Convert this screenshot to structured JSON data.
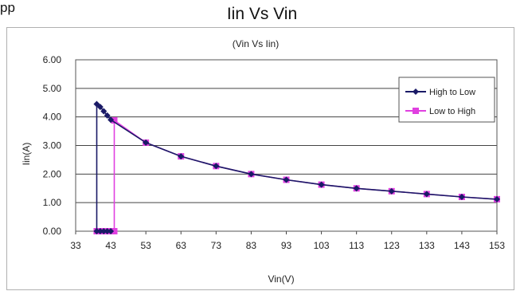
{
  "page": {
    "caption": "pp",
    "title": "Iin Vs Vin"
  },
  "chart_data": {
    "type": "line",
    "title": "(Vin Vs Iin)",
    "xlabel": "Vin(V)",
    "ylabel": "Iin(A)",
    "xlim": [
      33,
      153
    ],
    "ylim": [
      0,
      6
    ],
    "x_ticks": [
      "33",
      "43",
      "53",
      "63",
      "73",
      "83",
      "93",
      "103",
      "113",
      "123",
      "133",
      "143",
      "153"
    ],
    "y_ticks": [
      "0.00",
      "1.00",
      "2.00",
      "3.00",
      "4.00",
      "5.00",
      "6.00"
    ],
    "grid": true,
    "legend_position": "right",
    "series": [
      {
        "name": "High to Low",
        "color": "#1a1a66",
        "marker": "diamond",
        "points": [
          [
            153,
            1.12
          ],
          [
            143,
            1.2
          ],
          [
            133,
            1.3
          ],
          [
            123,
            1.4
          ],
          [
            113,
            1.5
          ],
          [
            103,
            1.63
          ],
          [
            93,
            1.8
          ],
          [
            83,
            2.0
          ],
          [
            73,
            2.28
          ],
          [
            63,
            2.62
          ],
          [
            53,
            3.1
          ],
          [
            43,
            3.9
          ],
          [
            42,
            4.05
          ],
          [
            41,
            4.2
          ],
          [
            40,
            4.35
          ],
          [
            39,
            4.45
          ],
          [
            39,
            0.0
          ],
          [
            40,
            0.0
          ],
          [
            41,
            0.0
          ],
          [
            42,
            0.0
          ],
          [
            43,
            0.0
          ]
        ]
      },
      {
        "name": "Low to High",
        "color": "#e040e0",
        "marker": "square",
        "points": [
          [
            39,
            0.0
          ],
          [
            40,
            0.0
          ],
          [
            41,
            0.0
          ],
          [
            42,
            0.0
          ],
          [
            43,
            0.0
          ],
          [
            44,
            0.0
          ],
          [
            44,
            3.88
          ],
          [
            53,
            3.1
          ],
          [
            63,
            2.62
          ],
          [
            73,
            2.28
          ],
          [
            83,
            2.0
          ],
          [
            93,
            1.8
          ],
          [
            103,
            1.63
          ],
          [
            113,
            1.5
          ],
          [
            123,
            1.4
          ],
          [
            133,
            1.3
          ],
          [
            143,
            1.2
          ],
          [
            153,
            1.12
          ]
        ]
      }
    ]
  }
}
